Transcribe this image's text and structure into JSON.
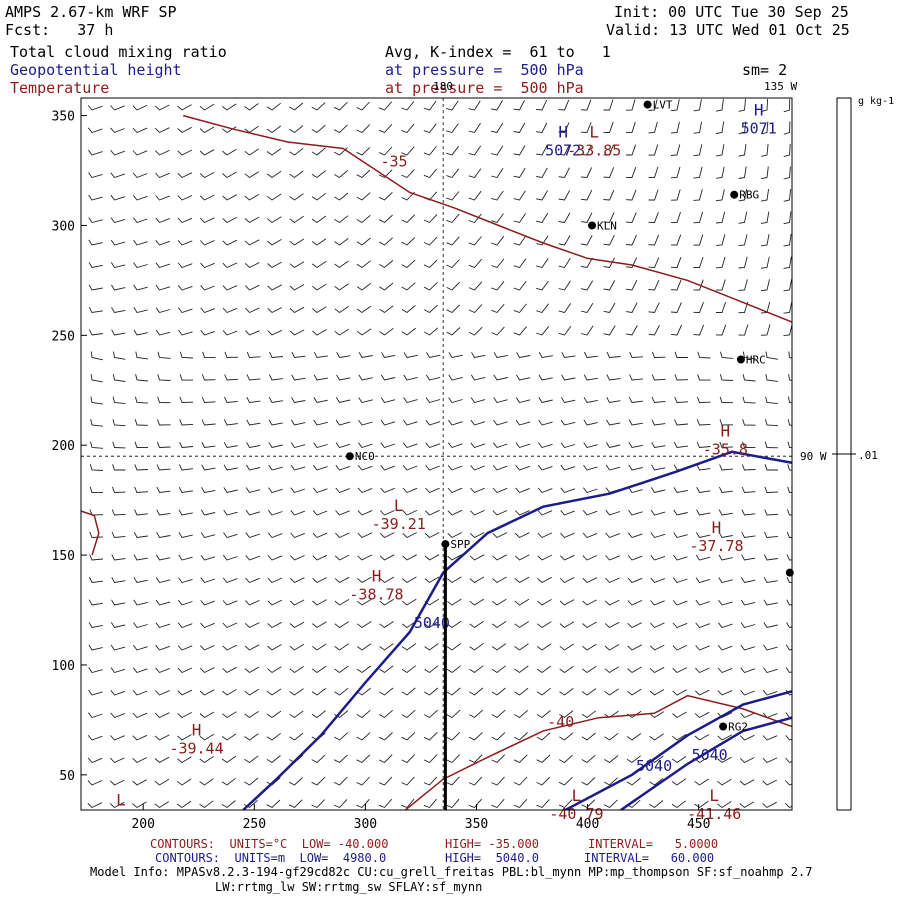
{
  "header": {
    "model": "AMPS 2.67-km WRF SP",
    "fcst": "Fcst:   37 h",
    "init": "Init: 00 UTC Tue 30 Sep 25",
    "valid": "Valid: 13 UTC Wed 01 Oct 25",
    "field1": "Total cloud mixing ratio",
    "field2": "Geopotential height",
    "field3": "Temperature",
    "avg": "Avg, K-index =  61 to   1",
    "pressure1": "at pressure =  500 hPa",
    "pressure2": "at pressure =  500 hPa",
    "sm": "sm= 2"
  },
  "colors": {
    "height": "#1c1c8c",
    "temperature": "#8c1c1c",
    "barb": "#222222"
  },
  "chart_data": {
    "type": "contour-map",
    "xticks": [
      200,
      250,
      300,
      350,
      400,
      450
    ],
    "yticks": [
      50,
      100,
      150,
      200,
      250,
      300,
      350
    ],
    "xlim": [
      172,
      492
    ],
    "ylim": [
      34,
      358
    ],
    "meridians": [
      {
        "label": "180",
        "x": 335
      },
      {
        "label": "135 W",
        "x": 492
      },
      {
        "label": "90 W",
        "y": 195
      }
    ],
    "colorbar": {
      "unit": "g kg-1",
      "value_label": ".01"
    },
    "stations": [
      {
        "name": "LVT",
        "x": 427,
        "y": 355
      },
      {
        "name": "RBG",
        "x": 466,
        "y": 314
      },
      {
        "name": "KLN",
        "x": 402,
        "y": 300
      },
      {
        "name": "HRC",
        "x": 469,
        "y": 239
      },
      {
        "name": "NCO",
        "x": 293,
        "y": 195
      },
      {
        "name": "SPP",
        "x": 336,
        "y": 155
      },
      {
        "name": "RG2",
        "x": 461,
        "y": 72
      },
      {
        "name": "",
        "x": 491,
        "y": 142
      }
    ],
    "height_contours": [
      {
        "label": "5040",
        "points": [
          [
            245,
            34
          ],
          [
            260,
            48
          ],
          [
            280,
            68
          ],
          [
            300,
            92
          ],
          [
            320,
            115
          ],
          [
            335,
            142
          ],
          [
            355,
            160
          ],
          [
            380,
            172
          ],
          [
            410,
            178
          ],
          [
            440,
            188
          ],
          [
            465,
            197
          ],
          [
            492,
            192
          ]
        ]
      },
      {
        "label": "5040",
        "points": [
          [
            390,
            34
          ],
          [
            420,
            50
          ],
          [
            445,
            68
          ],
          [
            470,
            82
          ],
          [
            492,
            88
          ]
        ]
      },
      {
        "label": "5040",
        "points": [
          [
            415,
            34
          ],
          [
            445,
            55
          ],
          [
            470,
            70
          ],
          [
            492,
            76
          ]
        ]
      }
    ],
    "temperature_contours": [
      {
        "label": "-35",
        "points": [
          [
            218,
            350
          ],
          [
            240,
            344
          ],
          [
            265,
            338
          ],
          [
            290,
            335
          ],
          [
            305,
            325
          ],
          [
            320,
            315
          ],
          [
            340,
            308
          ],
          [
            360,
            300
          ],
          [
            380,
            292
          ],
          [
            400,
            285
          ],
          [
            420,
            282
          ],
          [
            445,
            275
          ],
          [
            470,
            265
          ],
          [
            492,
            256
          ]
        ]
      },
      {
        "label": "-40",
        "points": [
          [
            318,
            34
          ],
          [
            335,
            48
          ],
          [
            355,
            58
          ],
          [
            380,
            70
          ],
          [
            405,
            76
          ],
          [
            430,
            78
          ],
          [
            445,
            86
          ],
          [
            470,
            80
          ],
          [
            492,
            72
          ]
        ]
      },
      {
        "label": "",
        "points": [
          [
            172,
            170
          ],
          [
            178,
            168
          ],
          [
            180,
            160
          ],
          [
            177,
            150
          ]
        ]
      }
    ],
    "extrema": [
      {
        "label": "H",
        "value": "5072",
        "x": 389,
        "y": 340,
        "color": "height"
      },
      {
        "label": "H",
        "value": "5071",
        "x": 477,
        "y": 350,
        "color": "height"
      },
      {
        "label": "L",
        "value": "-33.85",
        "x": 403,
        "y": 340,
        "color": "temperature"
      },
      {
        "label": "L",
        "value": "-39.21",
        "x": 315,
        "y": 170,
        "color": "temperature"
      },
      {
        "label": "H",
        "value": "-38.78",
        "x": 305,
        "y": 138,
        "color": "temperature"
      },
      {
        "label": "H",
        "value": "-35.8",
        "x": 462,
        "y": 204,
        "color": "temperature"
      },
      {
        "label": "H",
        "value": "-37.78",
        "x": 458,
        "y": 160,
        "color": "temperature"
      },
      {
        "label": "H",
        "value": "-39.44",
        "x": 224,
        "y": 68,
        "color": "temperature"
      },
      {
        "label": "L",
        "value": "-40.79",
        "x": 395,
        "y": 38,
        "color": "temperature"
      },
      {
        "label": "L",
        "value": "-41.46",
        "x": 457,
        "y": 38,
        "color": "temperature"
      },
      {
        "label": "L",
        "value": "",
        "x": 190,
        "y": 36,
        "color": "temperature"
      }
    ]
  },
  "footer": {
    "temp_units": "CONTOURS:  UNITS=°C  LOW= -40.000",
    "temp_high": "HIGH= -35.000",
    "temp_interval": "INTERVAL=   5.0000",
    "hgt_units": "CONTOURS:  UNITS=m  LOW=  4980.0",
    "hgt_high": "HIGH=  5040.0",
    "hgt_interval": "INTERVAL=   60.000",
    "model_info": "Model Info: MPASv8.2.3-194-gf29cd82c CU:cu_grell_freitas PBL:bl_mynn MP:mp_thompson SF:sf_noahmp 2.7",
    "model_info2": "LW:rrtmg_lw SW:rrtmg_sw SFLAY:sf_mynn"
  }
}
